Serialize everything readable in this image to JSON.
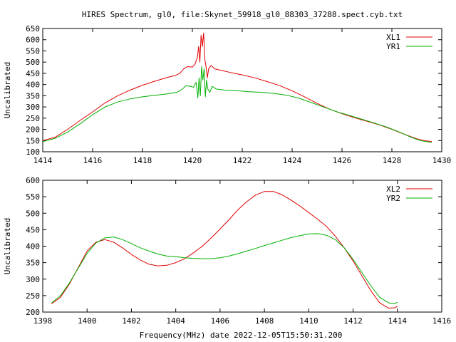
{
  "title": "HIRES Spectrum, gl0, file:Skynet_59918_gl0_88303_37288.spect.cyb.txt",
  "xlabel": "Frequency(MHz) date 2022-12-05T15:50:31.200",
  "chart_data": [
    {
      "type": "line",
      "ylabel": "Uncalibrated",
      "xlim": [
        1414,
        1430
      ],
      "ylim": [
        100,
        650
      ],
      "xticks": [
        1414,
        1416,
        1418,
        1420,
        1422,
        1424,
        1426,
        1428,
        1430
      ],
      "yticks": [
        100,
        150,
        200,
        250,
        300,
        350,
        400,
        450,
        500,
        550,
        600,
        650
      ],
      "legend_position": "top-right",
      "series": [
        {
          "name": "XL1",
          "color": "#e00000",
          "points": [
            [
              1414.0,
              150
            ],
            [
              1414.5,
              165
            ],
            [
              1415.0,
              200
            ],
            [
              1415.5,
              240
            ],
            [
              1416.0,
              278
            ],
            [
              1416.5,
              318
            ],
            [
              1417.0,
              350
            ],
            [
              1417.5,
              375
            ],
            [
              1418.0,
              397
            ],
            [
              1418.5,
              415
            ],
            [
              1419.0,
              432
            ],
            [
              1419.3,
              440
            ],
            [
              1419.5,
              450
            ],
            [
              1419.65,
              470
            ],
            [
              1419.8,
              480
            ],
            [
              1420.0,
              478
            ],
            [
              1420.1,
              490
            ],
            [
              1420.2,
              520
            ],
            [
              1420.25,
              570
            ],
            [
              1420.3,
              500
            ],
            [
              1420.35,
              620
            ],
            [
              1420.4,
              570
            ],
            [
              1420.45,
              630
            ],
            [
              1420.5,
              510
            ],
            [
              1420.55,
              480
            ],
            [
              1420.6,
              430
            ],
            [
              1420.65,
              470
            ],
            [
              1420.75,
              485
            ],
            [
              1420.9,
              470
            ],
            [
              1421.2,
              462
            ],
            [
              1421.6,
              452
            ],
            [
              1422.0,
              443
            ],
            [
              1422.5,
              430
            ],
            [
              1423.0,
              413
            ],
            [
              1423.5,
              395
            ],
            [
              1424.0,
              372
            ],
            [
              1424.5,
              345
            ],
            [
              1425.0,
              316
            ],
            [
              1425.5,
              290
            ],
            [
              1426.0,
              270
            ],
            [
              1426.5,
              252
            ],
            [
              1427.0,
              236
            ],
            [
              1427.5,
              220
            ],
            [
              1428.0,
              200
            ],
            [
              1428.5,
              178
            ],
            [
              1429.0,
              158
            ],
            [
              1429.3,
              150
            ],
            [
              1429.6,
              145
            ]
          ]
        },
        {
          "name": "YR1",
          "color": "#00b000",
          "points": [
            [
              1414.0,
              145
            ],
            [
              1414.5,
              160
            ],
            [
              1415.0,
              188
            ],
            [
              1415.5,
              225
            ],
            [
              1416.0,
              265
            ],
            [
              1416.5,
              300
            ],
            [
              1417.0,
              322
            ],
            [
              1417.5,
              336
            ],
            [
              1418.0,
              345
            ],
            [
              1418.5,
              352
            ],
            [
              1419.0,
              358
            ],
            [
              1419.4,
              366
            ],
            [
              1419.6,
              380
            ],
            [
              1419.75,
              395
            ],
            [
              1419.9,
              392
            ],
            [
              1420.05,
              388
            ],
            [
              1420.15,
              410
            ],
            [
              1420.22,
              340
            ],
            [
              1420.27,
              430
            ],
            [
              1420.32,
              350
            ],
            [
              1420.37,
              480
            ],
            [
              1420.42,
              420
            ],
            [
              1420.47,
              470
            ],
            [
              1420.52,
              345
            ],
            [
              1420.57,
              420
            ],
            [
              1420.62,
              380
            ],
            [
              1420.7,
              365
            ],
            [
              1420.8,
              392
            ],
            [
              1420.95,
              380
            ],
            [
              1421.3,
              375
            ],
            [
              1421.8,
              372
            ],
            [
              1422.3,
              368
            ],
            [
              1422.8,
              365
            ],
            [
              1423.3,
              360
            ],
            [
              1423.8,
              352
            ],
            [
              1424.3,
              338
            ],
            [
              1424.8,
              318
            ],
            [
              1425.3,
              298
            ],
            [
              1425.8,
              278
            ],
            [
              1426.3,
              262
            ],
            [
              1426.8,
              245
            ],
            [
              1427.3,
              228
            ],
            [
              1427.8,
              210
            ],
            [
              1428.3,
              188
            ],
            [
              1428.7,
              168
            ],
            [
              1429.0,
              155
            ],
            [
              1429.3,
              146
            ],
            [
              1429.6,
              142
            ]
          ]
        }
      ]
    },
    {
      "type": "line",
      "ylabel": "Uncalibrated",
      "xlim": [
        1398,
        1416
      ],
      "ylim": [
        200,
        600
      ],
      "xticks": [
        1398,
        1400,
        1402,
        1404,
        1406,
        1408,
        1410,
        1412,
        1414,
        1416
      ],
      "yticks": [
        200,
        250,
        300,
        350,
        400,
        450,
        500,
        550,
        600
      ],
      "legend_position": "top-right",
      "series": [
        {
          "name": "XL2",
          "color": "#e00000",
          "points": [
            [
              1398.4,
              225
            ],
            [
              1398.8,
              245
            ],
            [
              1399.2,
              285
            ],
            [
              1399.6,
              335
            ],
            [
              1400.0,
              385
            ],
            [
              1400.4,
              412
            ],
            [
              1400.8,
              420
            ],
            [
              1401.2,
              412
            ],
            [
              1401.6,
              395
            ],
            [
              1402.0,
              375
            ],
            [
              1402.4,
              358
            ],
            [
              1402.8,
              345
            ],
            [
              1403.2,
              340
            ],
            [
              1403.6,
              342
            ],
            [
              1404.0,
              350
            ],
            [
              1404.4,
              362
            ],
            [
              1404.8,
              380
            ],
            [
              1405.2,
              400
            ],
            [
              1405.6,
              425
            ],
            [
              1406.0,
              452
            ],
            [
              1406.4,
              480
            ],
            [
              1406.8,
              510
            ],
            [
              1407.2,
              535
            ],
            [
              1407.6,
              555
            ],
            [
              1408.0,
              566
            ],
            [
              1408.4,
              566
            ],
            [
              1408.8,
              556
            ],
            [
              1409.2,
              540
            ],
            [
              1409.6,
              522
            ],
            [
              1410.0,
              502
            ],
            [
              1410.4,
              482
            ],
            [
              1410.8,
              460
            ],
            [
              1411.2,
              430
            ],
            [
              1411.6,
              395
            ],
            [
              1412.0,
              355
            ],
            [
              1412.4,
              310
            ],
            [
              1412.8,
              265
            ],
            [
              1413.2,
              228
            ],
            [
              1413.6,
              212
            ],
            [
              1413.9,
              213
            ],
            [
              1414.0,
              218
            ]
          ]
        },
        {
          "name": "YR2",
          "color": "#00b000",
          "points": [
            [
              1398.4,
              228
            ],
            [
              1398.8,
              250
            ],
            [
              1399.2,
              288
            ],
            [
              1399.6,
              333
            ],
            [
              1400.0,
              378
            ],
            [
              1400.4,
              410
            ],
            [
              1400.8,
              425
            ],
            [
              1401.2,
              428
            ],
            [
              1401.6,
              420
            ],
            [
              1402.0,
              408
            ],
            [
              1402.4,
              395
            ],
            [
              1402.8,
              385
            ],
            [
              1403.2,
              376
            ],
            [
              1403.6,
              370
            ],
            [
              1404.0,
              368
            ],
            [
              1404.4,
              365
            ],
            [
              1404.8,
              363
            ],
            [
              1405.2,
              362
            ],
            [
              1405.6,
              362
            ],
            [
              1406.0,
              365
            ],
            [
              1406.4,
              370
            ],
            [
              1406.8,
              377
            ],
            [
              1407.2,
              385
            ],
            [
              1407.6,
              393
            ],
            [
              1408.0,
              402
            ],
            [
              1408.4,
              410
            ],
            [
              1408.8,
              418
            ],
            [
              1409.2,
              426
            ],
            [
              1409.6,
              432
            ],
            [
              1410.0,
              437
            ],
            [
              1410.4,
              438
            ],
            [
              1410.8,
              433
            ],
            [
              1411.2,
              420
            ],
            [
              1411.6,
              395
            ],
            [
              1412.0,
              360
            ],
            [
              1412.4,
              320
            ],
            [
              1412.8,
              280
            ],
            [
              1413.2,
              245
            ],
            [
              1413.6,
              228
            ],
            [
              1413.9,
              226
            ],
            [
              1414.0,
              230
            ]
          ]
        }
      ]
    }
  ]
}
